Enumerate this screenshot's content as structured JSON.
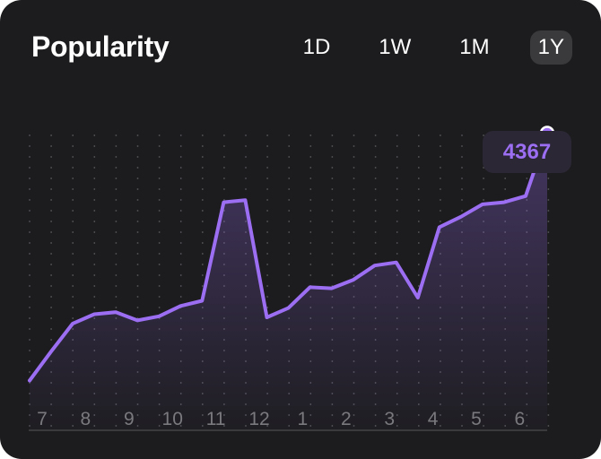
{
  "header": {
    "title": "Popularity"
  },
  "ranges": [
    {
      "label": "1D",
      "active": false
    },
    {
      "label": "1W",
      "active": false
    },
    {
      "label": "1M",
      "active": false
    },
    {
      "label": "1Y",
      "active": true
    }
  ],
  "colors": {
    "background": "#1c1c1e",
    "line": "#9b6ef2",
    "active_range": "#3a3a3c",
    "axis_text": "#7a7a7e"
  },
  "current_value": "4367",
  "chart_data": {
    "type": "area",
    "x_labels": [
      "7",
      "8",
      "9",
      "10",
      "11",
      "12",
      "1",
      "2",
      "3",
      "4",
      "5",
      "6"
    ],
    "values": [
      1980,
      2260,
      2530,
      2620,
      2640,
      2560,
      2600,
      2700,
      2750,
      3700,
      3720,
      2590,
      2680,
      2880,
      2870,
      2950,
      3090,
      3120,
      2780,
      3460,
      3560,
      3680,
      3700,
      3760,
      4367
    ],
    "ylim": [
      1500,
      4700
    ],
    "grid": "vertical-dotted"
  }
}
